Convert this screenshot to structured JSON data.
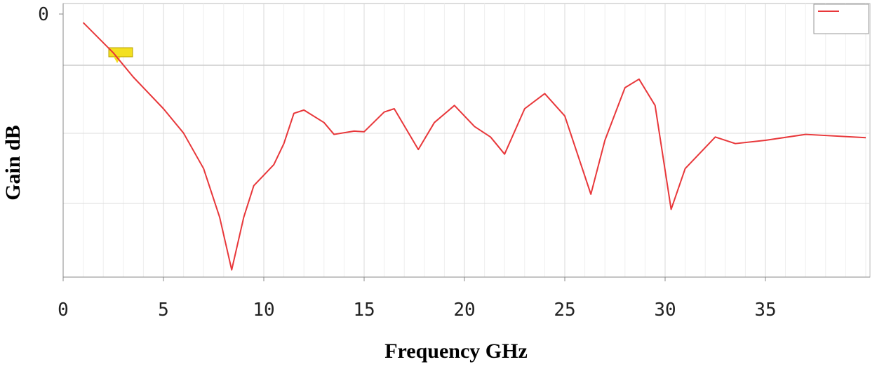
{
  "chart_data": {
    "type": "line",
    "x_label": "Frequency GHz",
    "y_label": "Gain dB",
    "xlim": [
      0,
      40
    ],
    "xticks": [
      0,
      5,
      10,
      15,
      20,
      25,
      30,
      35
    ],
    "ylim": [
      -40,
      0
    ],
    "yticks": [
      0
    ],
    "grid": true,
    "series": [
      {
        "color": "#e8373a",
        "x": [
          1.0,
          2.5,
          3.5,
          5,
          6,
          7,
          7.8,
          8.4,
          9,
          9.5,
          10.5,
          11,
          11.5,
          12,
          13,
          13.5,
          14.5,
          15,
          16,
          16.5,
          17.7,
          18.5,
          19.5,
          20.5,
          21.3,
          22,
          23,
          24,
          25,
          26.3,
          27,
          28,
          28.7,
          29.5,
          30.3,
          31,
          32.5,
          33.5,
          35,
          37,
          40
        ],
        "values": [
          -1.3,
          -5.9,
          -9.6,
          -14.4,
          -18.1,
          -23.5,
          -30.9,
          -38.9,
          -30.9,
          -26.1,
          -22.9,
          -19.7,
          -15.1,
          -14.6,
          -16.5,
          -18.3,
          -17.8,
          -17.9,
          -14.9,
          -14.4,
          -20.6,
          -16.5,
          -13.9,
          -17.1,
          -18.7,
          -21.3,
          -14.4,
          -12.1,
          -15.5,
          -27.4,
          -19.2,
          -11.2,
          -9.9,
          -13.9,
          -29.7,
          -23.5,
          -18.7,
          -19.7,
          -19.2,
          -18.3,
          -18.8
        ]
      }
    ]
  }
}
